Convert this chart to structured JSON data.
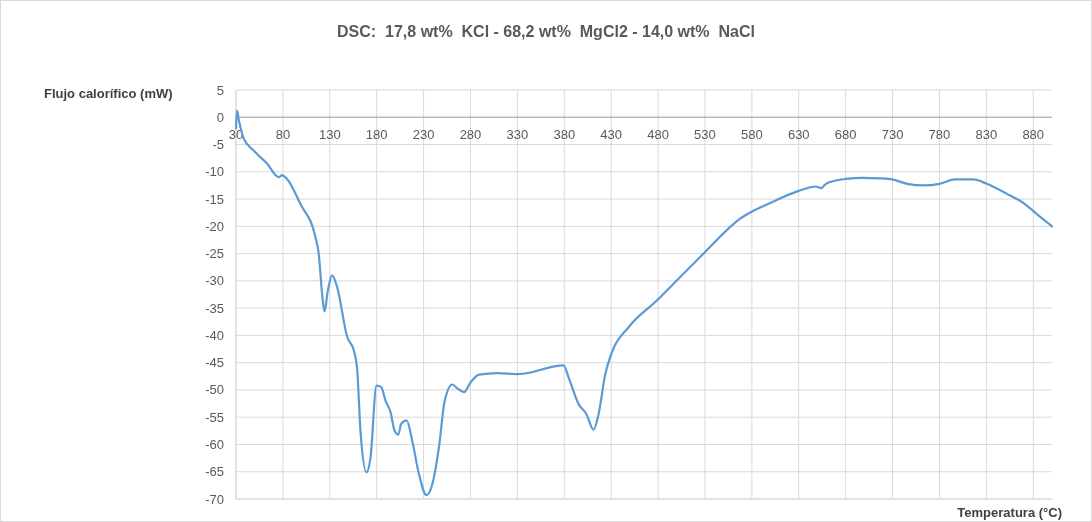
{
  "chart_data": {
    "type": "line",
    "title": "DSC:  17,8 wt%  KCl - 68,2 wt%  MgCl2 - 14,0 wt%  NaCl",
    "xlabel": "Temperatura (°C)",
    "ylabel": "Flujo calorífico (mW)",
    "x": [
      30,
      31,
      33,
      38.2,
      48.9,
      63.1,
      75.6,
      79.1,
      84.4,
      98.7,
      114.7,
      118.2,
      121.8,
      124.3,
      127.9,
      132.5,
      137.9,
      148.6,
      155.7,
      159.3,
      162.7,
      169.1,
      173.4,
      179.8,
      184.8,
      189.5,
      194.8,
      199.1,
      203,
      206.2,
      211.9,
      217.9,
      225,
      233.2,
      239.3,
      246.4,
      252.5,
      260.6,
      266.7,
      273.1,
      280.2,
      289.1,
      308.7,
      330,
      344.2,
      354.8,
      379.3,
      384.6,
      395.3,
      403.5,
      411.3,
      416.6,
      423.7,
      430.8,
      448.6,
      478.7,
      503.6,
      530.2,
      553.3,
      567.5,
      580,
      596,
      630,
      648.4,
      653.7,
      659,
      669.6,
      680.6,
      697.9,
      717.3,
      729.6,
      745.5,
      763.2,
      780.2,
      796.8,
      816.3,
      830.4,
      851.6,
      869.3,
      883.5,
      900
    ],
    "series": [
      {
        "color": "#5b9bd5",
        "values": [
          -2,
          1.2,
          -0.5,
          -3.9,
          -6.1,
          -8.5,
          -11,
          -10.6,
          -11.3,
          -15.9,
          -22,
          -25,
          -32.4,
          -35.6,
          -31.8,
          -29,
          -31.2,
          -40.3,
          -42.8,
          -46.5,
          -57.5,
          -65.1,
          -62.4,
          -49.2,
          -49.5,
          -52,
          -54.1,
          -57.5,
          -58.2,
          -56.2,
          -55.6,
          -59.3,
          -65.4,
          -69.3,
          -67.3,
          -60.5,
          -52,
          -49,
          -49.8,
          -50.4,
          -48.6,
          -47.2,
          -46.9,
          -47.1,
          -46.8,
          -46.3,
          -45.5,
          -47.7,
          -52.6,
          -54.4,
          -57.3,
          -54.4,
          -47.1,
          -43.1,
          -38.5,
          -33.6,
          -29.3,
          -24.7,
          -20.7,
          -18.6,
          -17.3,
          -16,
          -13.5,
          -12.7,
          -13,
          -12.2,
          -11.6,
          -11.3,
          -11.1,
          -11.2,
          -11.4,
          -12.2,
          -12.5,
          -12.2,
          -11.4,
          -11.4,
          -12.2,
          -14,
          -15.7,
          -17.7,
          -20
        ]
      }
    ],
    "xlim": [
      30,
      900
    ],
    "xticks": [
      30,
      80,
      130,
      180,
      230,
      280,
      330,
      380,
      430,
      480,
      530,
      580,
      630,
      680,
      730,
      780,
      830,
      880
    ],
    "ylim": [
      -70,
      5
    ],
    "yticks": [
      5,
      0,
      -5,
      -10,
      -15,
      -20,
      -25,
      -30,
      -35,
      -40,
      -45,
      -50,
      -55,
      -60,
      -65,
      -70
    ],
    "grid": true,
    "marker": "none",
    "line_style": "solid"
  }
}
